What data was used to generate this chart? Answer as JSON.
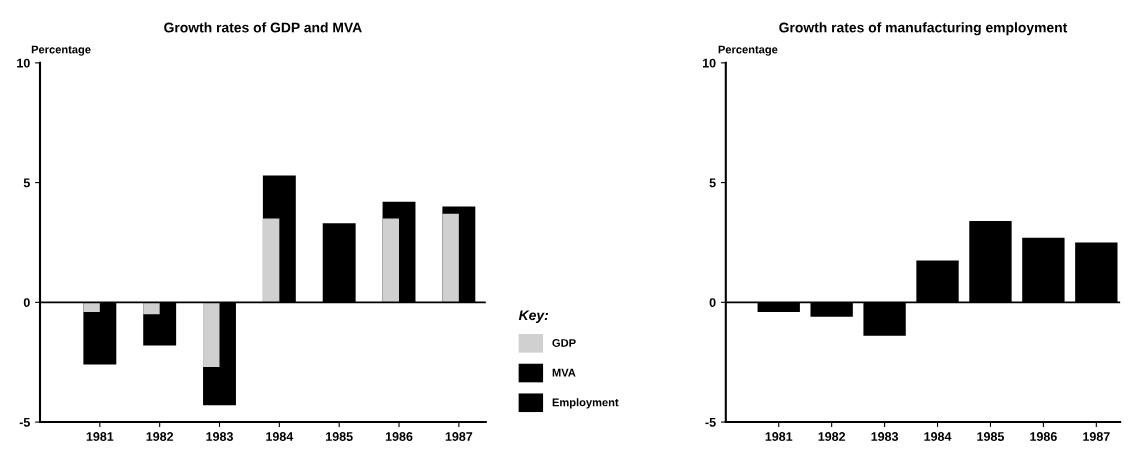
{
  "chart_data": [
    {
      "type": "bar",
      "title": "Growth rates of GDP and MVA",
      "ylabel": "Percentage",
      "categories": [
        "1981",
        "1982",
        "1983",
        "1984",
        "1985",
        "1986",
        "1987"
      ],
      "ylim": [
        -5,
        10
      ],
      "yticks": [
        -5,
        0,
        5,
        10
      ],
      "legend": "right",
      "legend_title": "Key:",
      "series": [
        {
          "name": "MVA",
          "color": "#000000",
          "values": [
            -2.6,
            -1.8,
            -4.3,
            5.3,
            3.3,
            4.2,
            4.0
          ]
        },
        {
          "name": "GDP",
          "color": "#d0d0d0",
          "values": [
            -0.4,
            -0.5,
            -2.7,
            3.5,
            null,
            3.5,
            3.7
          ]
        }
      ]
    },
    {
      "type": "bar",
      "title": "Growth rates of manufacturing employment",
      "ylabel": "Percentage",
      "categories": [
        "1981",
        "1982",
        "1983",
        "1984",
        "1985",
        "1986",
        "1987"
      ],
      "ylim": [
        -5,
        10
      ],
      "yticks": [
        -5,
        0,
        5,
        10
      ],
      "series": [
        {
          "name": "Employment",
          "color": "#000000",
          "values": [
            -0.4,
            -0.6,
            -1.4,
            1.75,
            3.4,
            2.7,
            2.5
          ]
        }
      ]
    }
  ]
}
